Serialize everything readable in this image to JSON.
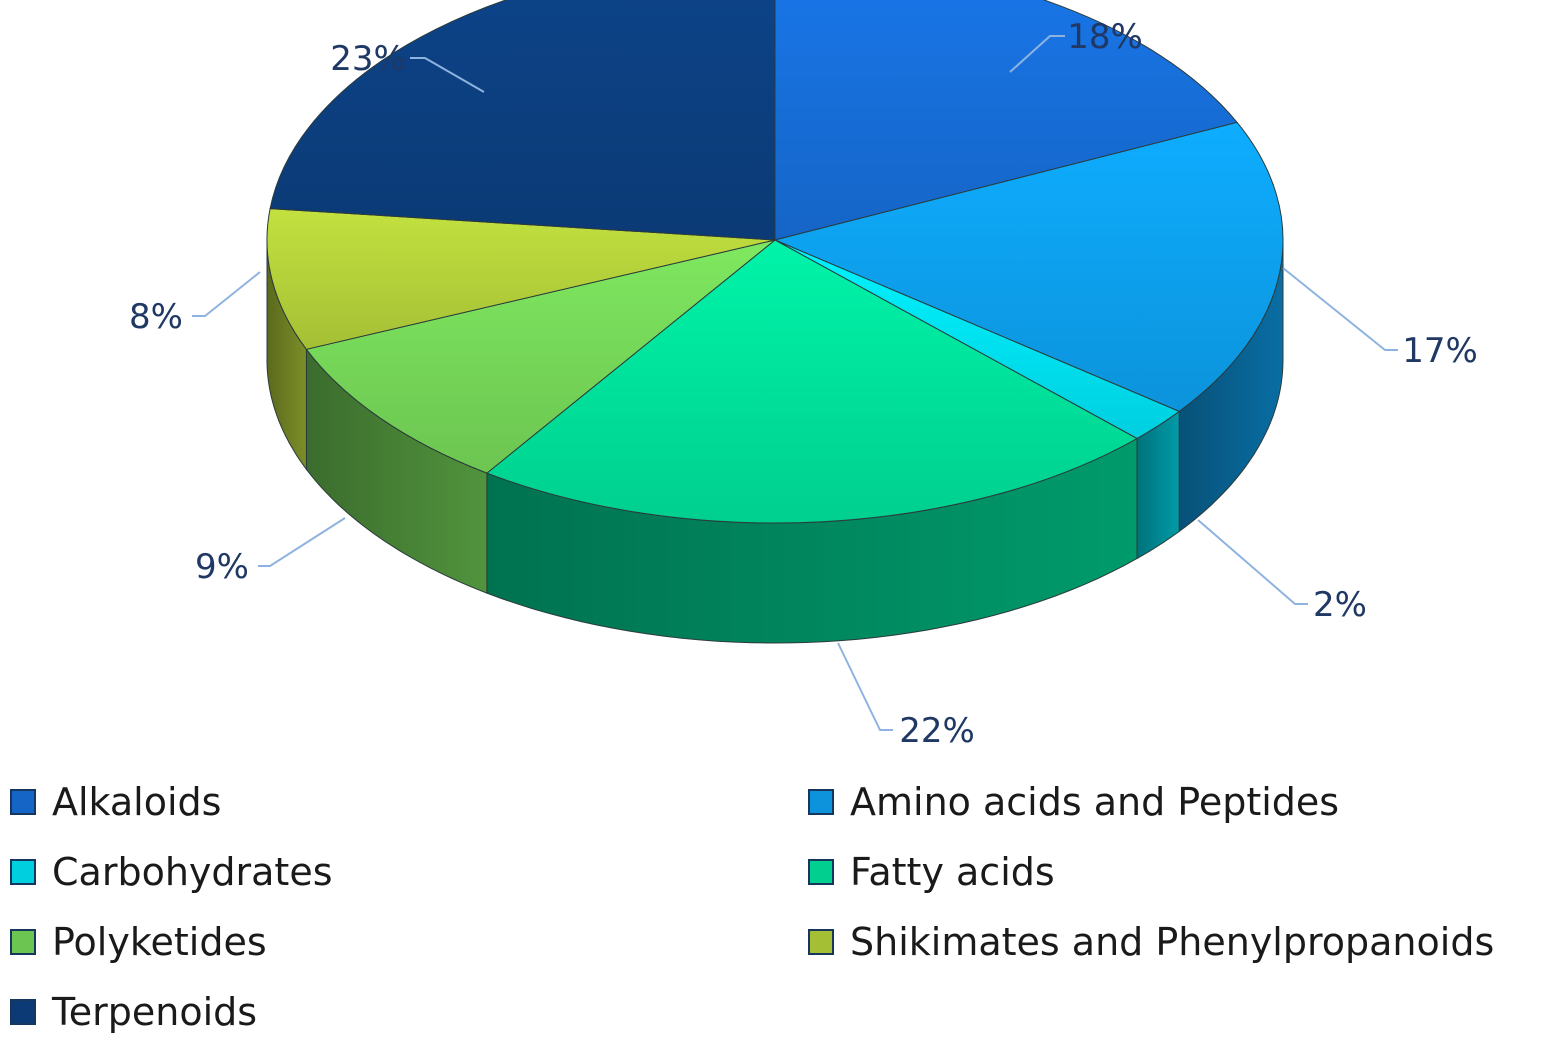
{
  "chart_data": {
    "type": "pie",
    "style": "3d",
    "title": "",
    "slices": [
      {
        "name": "Alkaloids",
        "value": 18,
        "label": "18%",
        "color": "#1565c6"
      },
      {
        "name": "Amino acids and Peptides",
        "value": 17,
        "label": "17%",
        "color": "#0c93db"
      },
      {
        "name": "Carbohydrates",
        "value": 2,
        "label": "2%",
        "color": "#00cfe0"
      },
      {
        "name": "Fatty acids",
        "value": 22,
        "label": "22%",
        "color": "#00cf8f"
      },
      {
        "name": "Polyketides",
        "value": 9,
        "label": "9%",
        "color": "#6cc551"
      },
      {
        "name": "Shikimates and Phenylpropanoids",
        "value": 8,
        "label": "8%",
        "color": "#a5bf35"
      },
      {
        "name": "Terpenoids",
        "value": 23,
        "label": "23%",
        "color": "#0b3a75"
      }
    ],
    "legend_position": "bottom",
    "legend_columns": 2
  }
}
